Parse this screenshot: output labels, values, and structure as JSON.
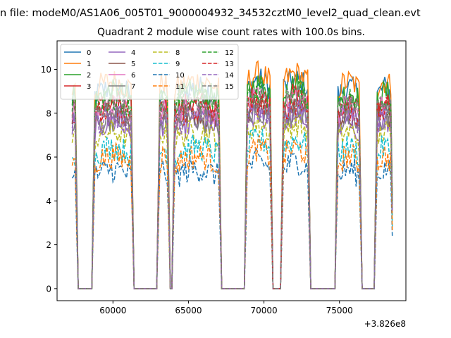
{
  "chart_data": {
    "type": "line",
    "suptitle": "n file: modeM0/AS1A06_005T01_9000004932_34532cztM0_level2_quad_clean.evt",
    "title": "Quadrant 2 module wise count rates with 100.0s bins.",
    "xlabel": "",
    "ylabel": "",
    "x_offset_label": "+3.826e8",
    "xlim": [
      56300,
      79400
    ],
    "ylim": [
      -0.55,
      11.3
    ],
    "x_ticks": [
      60000,
      65000,
      70000,
      75000
    ],
    "x_tick_labels": [
      "60000",
      "65000",
      "70000",
      "75000"
    ],
    "y_ticks": [
      0,
      2,
      4,
      6,
      8,
      10
    ],
    "y_tick_labels": [
      "0",
      "2",
      "4",
      "6",
      "8",
      "10"
    ],
    "grid": false,
    "legend_position": "top-left",
    "legend_columns": 4,
    "bin_seconds": 100,
    "x_start": 57300,
    "on_intervals": [
      [
        57300,
        57500
      ],
      [
        58800,
        61200
      ],
      [
        63100,
        63600
      ],
      [
        64100,
        67000
      ],
      [
        68900,
        70400
      ],
      [
        71300,
        72900
      ],
      [
        74900,
        76300
      ],
      [
        77500,
        78500
      ]
    ],
    "series": [
      {
        "name": "0",
        "color": "#1f77b4",
        "dash": "solid",
        "level": 9.0
      },
      {
        "name": "1",
        "color": "#ff7f0e",
        "dash": "solid",
        "level": 9.3
      },
      {
        "name": "2",
        "color": "#2ca02c",
        "dash": "solid",
        "level": 8.8
      },
      {
        "name": "3",
        "color": "#d62728",
        "dash": "solid",
        "level": 8.3
      },
      {
        "name": "4",
        "color": "#9467bd",
        "dash": "solid",
        "level": 7.4
      },
      {
        "name": "5",
        "color": "#8c564b",
        "dash": "solid",
        "level": 7.9
      },
      {
        "name": "6",
        "color": "#e377c2",
        "dash": "solid",
        "level": 8.1
      },
      {
        "name": "7",
        "color": "#7f7f7f",
        "dash": "solid",
        "level": 7.6
      },
      {
        "name": "8",
        "color": "#bcbd22",
        "dash": "dashed",
        "level": 7.0
      },
      {
        "name": "9",
        "color": "#17becf",
        "dash": "dashed",
        "level": 6.3
      },
      {
        "name": "10",
        "color": "#1f77b4",
        "dash": "dashed",
        "level": 5.3
      },
      {
        "name": "11",
        "color": "#ff7f0e",
        "dash": "dashed",
        "level": 5.9
      },
      {
        "name": "12",
        "color": "#2ca02c",
        "dash": "dashed",
        "level": 8.5
      },
      {
        "name": "13",
        "color": "#d62728",
        "dash": "dashed",
        "level": 8.0
      },
      {
        "name": "14",
        "color": "#9467bd",
        "dash": "dashed",
        "level": 7.7
      },
      {
        "name": "15",
        "color": "#7f7f7f",
        "dash": "dashed",
        "level": 8.2
      }
    ]
  }
}
